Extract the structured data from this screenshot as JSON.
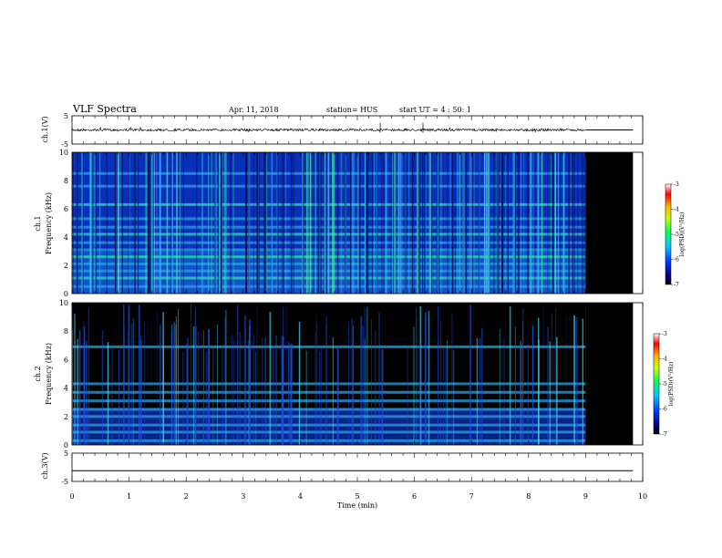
{
  "header": {
    "title": "VLF Spectra",
    "date": "Apr. 11, 2018",
    "station": "station= HUS",
    "start": "start  UT =  4 : 50: 1"
  },
  "chart_data": [
    {
      "type": "line",
      "panel": "ch1-waveform",
      "ylabel": "ch.1(V)",
      "y_ticks": [
        "5",
        "-5"
      ],
      "ylim": [
        -5,
        5
      ],
      "xlim": [
        0,
        10
      ],
      "series": [
        {
          "values_x": [
            0,
            9.0
          ],
          "level": 0,
          "style": "noisy"
        },
        {
          "values_x": [
            9.0,
            9.83
          ],
          "level": 0,
          "style": "flat"
        }
      ]
    },
    {
      "type": "heatmap",
      "panel": "ch1-spectrogram",
      "ylabel": "ch.1\nFrequency (kHz)",
      "ylabel_line1": "ch.1",
      "ylabel_line2": "Frequency (kHz)",
      "y_ticks": [
        "10",
        "8",
        "6",
        "4",
        "2",
        "0"
      ],
      "ylim": [
        0,
        10
      ],
      "xlim": [
        0,
        10
      ],
      "data_end_min": 9.0,
      "panel_end_min": 9.83,
      "harmonic_bands_khz": [
        0.5,
        1.1,
        1.6,
        2.1,
        2.6,
        3.1,
        3.6,
        4.2,
        4.7,
        5.3,
        6.3,
        7.6,
        8.5
      ],
      "colorbar": {
        "label": "log(PSD)(V²/Hz)",
        "ticks": [
          "-3",
          "-4",
          "-5",
          "-6",
          "-7"
        ],
        "range": [
          -7,
          -3
        ]
      }
    },
    {
      "type": "heatmap",
      "panel": "ch2-spectrogram",
      "ylabel": "ch.2\nFrequency (kHz)",
      "ylabel_line1": "ch.2",
      "ylabel_line2": "Frequency (kHz)",
      "y_ticks": [
        "10",
        "8",
        "6",
        "4",
        "2",
        "0"
      ],
      "ylim": [
        0,
        10
      ],
      "xlim": [
        0,
        10
      ],
      "data_end_min": 9.0,
      "panel_end_min": 9.83,
      "harmonic_bands_khz": [
        0.3,
        0.9,
        1.4,
        2.0,
        2.5,
        3.1,
        3.7,
        4.3,
        6.9
      ],
      "colorbar": {
        "label": "log(PSD)(V²/Hz)",
        "ticks": [
          "-3",
          "-4",
          "-5",
          "-6",
          "-7"
        ],
        "range": [
          -7,
          -3
        ]
      }
    },
    {
      "type": "line",
      "panel": "ch3-waveform",
      "ylabel": "ch.3(V)",
      "y_ticks": [
        "5",
        "-5"
      ],
      "ylim": [
        -5,
        5
      ],
      "xlim": [
        0,
        10
      ],
      "xlabel": "Time (min)",
      "x_ticks": [
        "0",
        "1",
        "2",
        "3",
        "4",
        "5",
        "6",
        "7",
        "8",
        "9",
        "10"
      ],
      "series": [
        {
          "values_x": [
            0,
            9.83
          ],
          "level": -1.2,
          "style": "flat"
        }
      ]
    }
  ]
}
